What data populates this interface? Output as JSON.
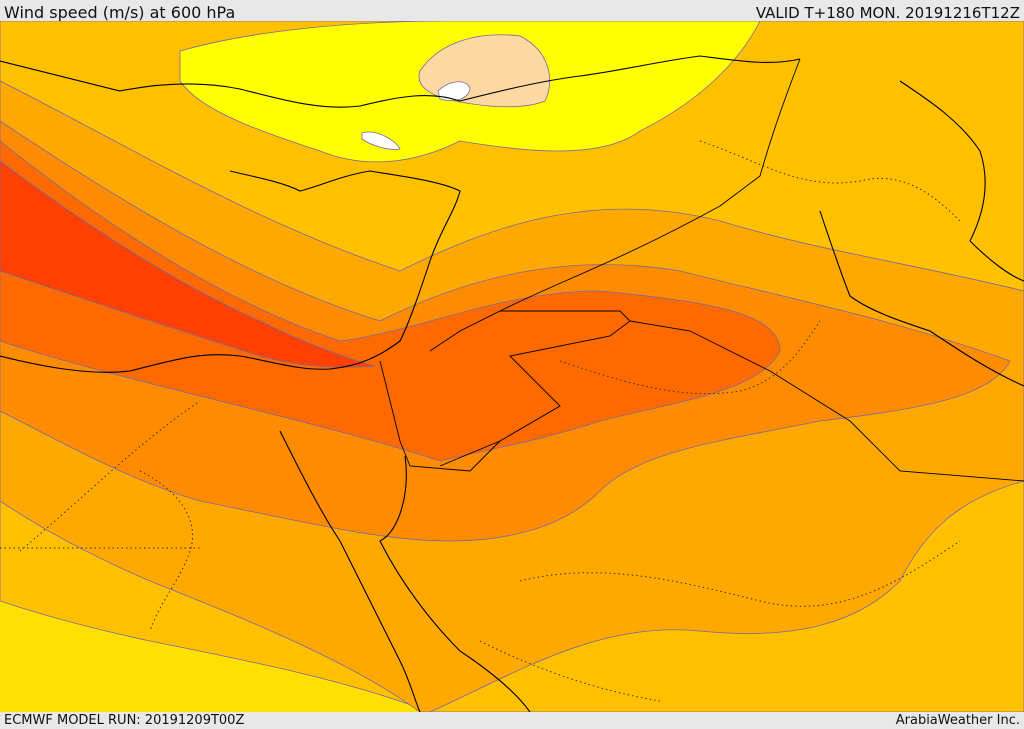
{
  "header": {
    "title": "Wind speed (m/s) at 600 hPa",
    "valid": "VALID T+180 MON. 20191216T12Z"
  },
  "footer": {
    "model_run": "ECMWF MODEL RUN: 20191209T00Z",
    "brand": "ArabiaWeather Inc."
  },
  "colors": {
    "lowest": "#ffffff",
    "very_low": "#fcd9a2",
    "low": "#ffff00",
    "light": "#ffe000",
    "moderate": "#ffc000",
    "strong": "#ffa800",
    "stronger": "#ff8c00",
    "very_strong": "#ff6a00",
    "extreme": "#ff4000"
  }
}
